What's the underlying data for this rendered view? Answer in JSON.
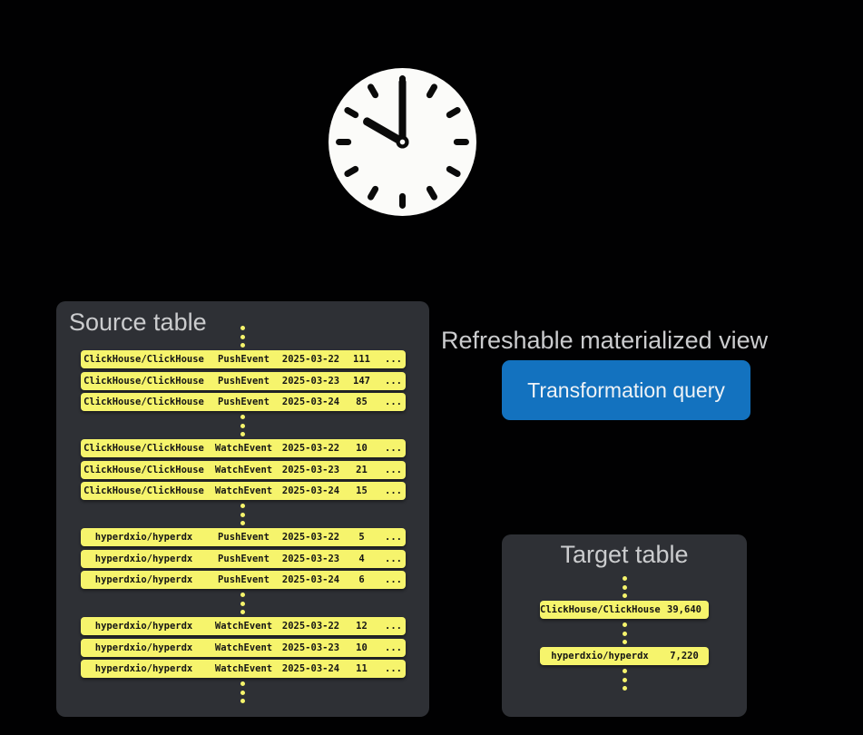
{
  "clock": {
    "icon": "analog-clock",
    "time_shown": "10:00"
  },
  "source_table": {
    "title": "Source table",
    "groups": [
      {
        "rows": [
          [
            "ClickHouse/ClickHouse",
            "PushEvent",
            "2025-03-22",
            "111",
            "..."
          ],
          [
            "ClickHouse/ClickHouse",
            "PushEvent",
            "2025-03-23",
            "147",
            "..."
          ],
          [
            "ClickHouse/ClickHouse",
            "PushEvent",
            "2025-03-24",
            "85",
            "..."
          ]
        ]
      },
      {
        "rows": [
          [
            "ClickHouse/ClickHouse",
            "WatchEvent",
            "2025-03-22",
            "10",
            "..."
          ],
          [
            "ClickHouse/ClickHouse",
            "WatchEvent",
            "2025-03-23",
            "21",
            "..."
          ],
          [
            "ClickHouse/ClickHouse",
            "WatchEvent",
            "2025-03-24",
            "15",
            "..."
          ]
        ]
      },
      {
        "rows": [
          [
            "hyperdxio/hyperdx",
            "PushEvent",
            "2025-03-22",
            "5",
            "..."
          ],
          [
            "hyperdxio/hyperdx",
            "PushEvent",
            "2025-03-23",
            "4",
            "..."
          ],
          [
            "hyperdxio/hyperdx",
            "PushEvent",
            "2025-03-24",
            "6",
            "..."
          ]
        ]
      },
      {
        "rows": [
          [
            "hyperdxio/hyperdx",
            "WatchEvent",
            "2025-03-22",
            "12",
            "..."
          ],
          [
            "hyperdxio/hyperdx",
            "WatchEvent",
            "2025-03-23",
            "10",
            "..."
          ],
          [
            "hyperdxio/hyperdx",
            "WatchEvent",
            "2025-03-24",
            "11",
            "..."
          ]
        ]
      }
    ]
  },
  "materialized_view": {
    "label": "Refreshable materialized view",
    "button_label": "Transformation query"
  },
  "target_table": {
    "title": "Target table",
    "rows": [
      [
        "ClickHouse/ClickHouse",
        "39,640"
      ],
      [
        "hyperdxio/hyperdx",
        "7,220"
      ]
    ]
  },
  "colors": {
    "background": "#010102",
    "panel": "#2e3035",
    "row_yellow": "#f6f46c",
    "row_text": "#151515",
    "heading_gray": "#cbccce",
    "accent_blue": "#1372bf",
    "button_text": "#eef2f6",
    "clock_face": "#fbfbf9",
    "clock_marks": "#0a0a0a"
  }
}
